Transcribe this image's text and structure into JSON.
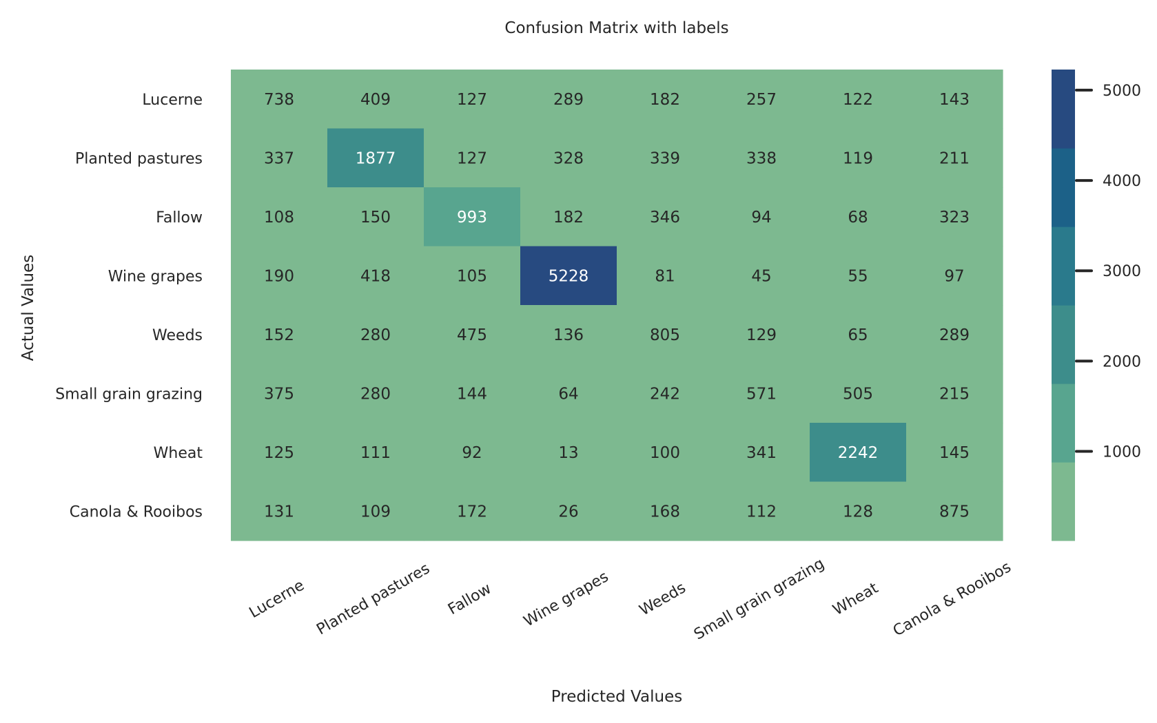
{
  "chart_data": {
    "type": "heatmap",
    "title": "Confusion Matrix with labels",
    "xlabel": "Predicted Values",
    "ylabel": "Actual Values",
    "x_categories": [
      "Lucerne",
      "Planted pastures",
      "Fallow",
      "Wine grapes",
      "Weeds",
      "Small grain grazing",
      "Wheat",
      "Canola & Rooibos"
    ],
    "y_categories": [
      "Lucerne",
      "Planted pastures",
      "Fallow",
      "Wine grapes",
      "Weeds",
      "Small grain grazing",
      "Wheat",
      "Canola & Rooibos"
    ],
    "values": [
      [
        738,
        409,
        127,
        289,
        182,
        257,
        122,
        143
      ],
      [
        337,
        1877,
        127,
        328,
        339,
        338,
        119,
        211
      ],
      [
        108,
        150,
        993,
        182,
        346,
        94,
        68,
        323
      ],
      [
        190,
        418,
        105,
        5228,
        81,
        45,
        55,
        97
      ],
      [
        152,
        280,
        475,
        136,
        805,
        129,
        65,
        289
      ],
      [
        375,
        280,
        144,
        64,
        242,
        571,
        505,
        215
      ],
      [
        125,
        111,
        92,
        13,
        100,
        341,
        2242,
        145
      ],
      [
        131,
        109,
        172,
        26,
        168,
        112,
        128,
        875
      ]
    ],
    "colorbar": {
      "ticks": [
        1000,
        2000,
        3000,
        4000,
        5000
      ],
      "range": [
        13,
        5228
      ],
      "colors": [
        "#7db990",
        "#58a58f",
        "#3d8d8b",
        "#2a7a8c",
        "#1c6188",
        "#274a80"
      ]
    }
  }
}
